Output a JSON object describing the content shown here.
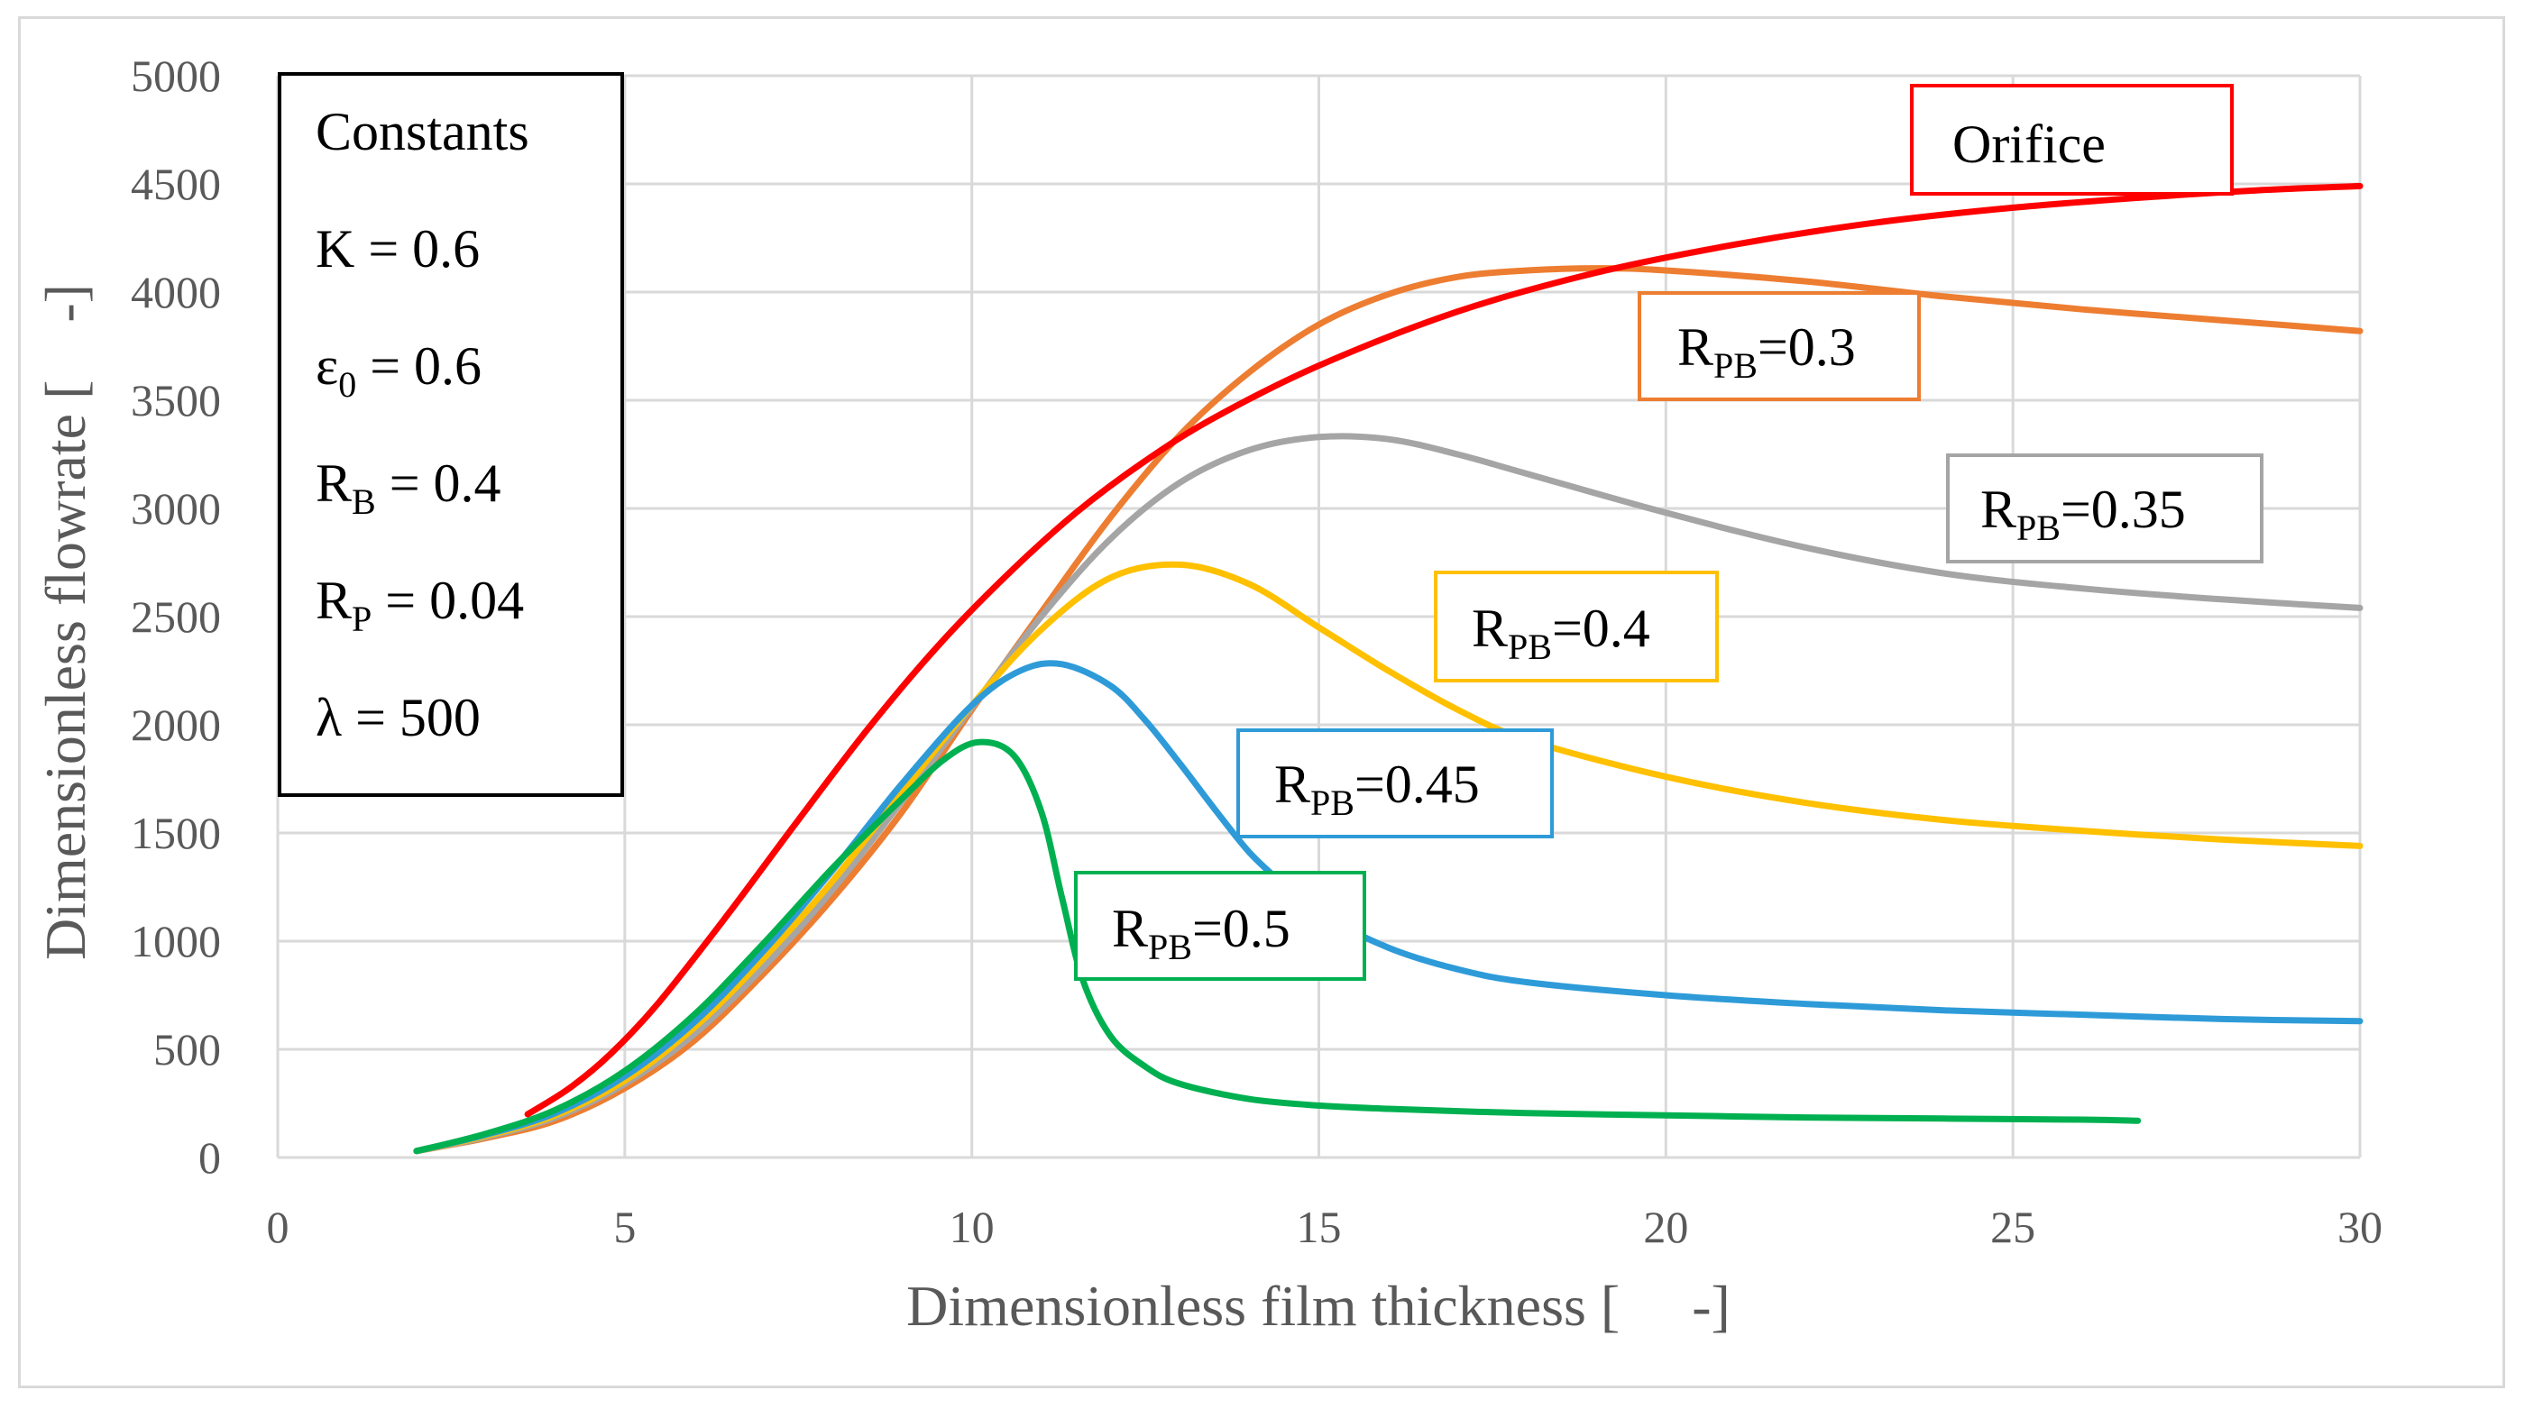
{
  "chart_data": {
    "type": "line",
    "xlabel": "Dimensionless film thickness [     -]",
    "ylabel": "Dimensionless flowrate [    -]",
    "xlim": [
      0,
      30
    ],
    "ylim": [
      0,
      5000
    ],
    "x_ticks": [
      0,
      5,
      10,
      15,
      20,
      25,
      30
    ],
    "y_ticks": [
      0,
      500,
      1000,
      1500,
      2000,
      2500,
      3000,
      3500,
      4000,
      4500,
      5000
    ],
    "grid": true,
    "constants_box": {
      "title": "Constants",
      "lines": [
        {
          "main": "K = 0.6"
        },
        {
          "main": "ε",
          "sub": "0",
          "rest": " = 0.6"
        },
        {
          "main": "R",
          "sub": "B",
          "rest": " = 0.4"
        },
        {
          "main": "R",
          "sub": "P",
          "rest": " = 0.04"
        },
        {
          "main": "λ = 500"
        }
      ]
    },
    "series": [
      {
        "name": "Orifice",
        "label_main": "Orifice",
        "color": "#ff0000",
        "x": [
          3.6,
          4.2,
          4.8,
          5.5,
          6.5,
          7.5,
          8.5,
          9.5,
          10.5,
          11.5,
          12.5,
          13.5,
          15,
          17,
          19,
          21,
          23,
          25,
          27,
          28.5,
          30
        ],
        "y": [
          200,
          320,
          480,
          720,
          1130,
          1560,
          1980,
          2360,
          2690,
          2980,
          3220,
          3420,
          3660,
          3910,
          4090,
          4220,
          4320,
          4390,
          4440,
          4470,
          4490
        ]
      },
      {
        "name": "RPB=0.3",
        "label_main": "R",
        "label_sub": "PB",
        "label_rest": "=0.3",
        "color": "#ed7d31",
        "x": [
          2,
          3,
          4,
          5,
          6,
          7,
          8,
          9,
          10,
          11,
          12,
          13,
          14,
          15,
          16,
          17,
          18,
          19,
          20,
          22,
          24,
          26,
          28,
          30
        ],
        "y": [
          30,
          90,
          170,
          320,
          540,
          850,
          1200,
          1600,
          2070,
          2520,
          2960,
          3340,
          3630,
          3850,
          3990,
          4070,
          4100,
          4110,
          4100,
          4050,
          3980,
          3920,
          3870,
          3820
        ]
      },
      {
        "name": "RPB=0.35",
        "label_main": "R",
        "label_sub": "PB",
        "label_rest": "=0.35",
        "color": "#a5a5a5",
        "x": [
          2,
          3,
          4,
          5,
          6,
          7,
          8,
          9,
          10,
          11,
          12,
          13,
          14,
          15,
          16,
          17,
          18,
          20,
          22,
          24,
          26,
          28,
          30
        ],
        "y": [
          30,
          95,
          185,
          340,
          570,
          880,
          1240,
          1650,
          2080,
          2500,
          2860,
          3120,
          3270,
          3330,
          3320,
          3250,
          3160,
          2980,
          2820,
          2700,
          2630,
          2580,
          2540
        ]
      },
      {
        "name": "RPB=0.4",
        "label_main": "R",
        "label_sub": "PB",
        "label_rest": "=0.4",
        "color": "#ffc000",
        "x": [
          2,
          3,
          4,
          5,
          6,
          7,
          8,
          9,
          10,
          11,
          12,
          13,
          14,
          15,
          16,
          17,
          18,
          20,
          22,
          24,
          26,
          28,
          30
        ],
        "y": [
          30,
          100,
          195,
          355,
          600,
          920,
          1280,
          1690,
          2090,
          2440,
          2680,
          2740,
          2650,
          2450,
          2250,
          2070,
          1930,
          1760,
          1640,
          1560,
          1510,
          1470,
          1440
        ]
      },
      {
        "name": "RPB=0.45",
        "label_main": "R",
        "label_sub": "PB",
        "label_rest": "=0.45",
        "color": "#2e9bd8",
        "x": [
          2,
          3,
          4,
          5,
          6,
          7,
          8,
          9,
          10,
          10.7,
          11.3,
          12,
          12.5,
          13,
          13.5,
          14,
          14.5,
          15,
          16,
          17,
          18,
          20,
          22,
          24,
          26,
          28,
          30
        ],
        "y": [
          30,
          105,
          205,
          375,
          625,
          955,
          1330,
          1730,
          2090,
          2250,
          2280,
          2180,
          2020,
          1820,
          1610,
          1410,
          1260,
          1130,
          970,
          870,
          810,
          750,
          710,
          680,
          660,
          640,
          630
        ]
      },
      {
        "name": "RPB=0.5",
        "label_main": "R",
        "label_sub": "PB",
        "label_rest": "=0.5",
        "color": "#00b050",
        "x": [
          2,
          3,
          4,
          5,
          6,
          7,
          8,
          9,
          9.6,
          10.1,
          10.6,
          11,
          11.3,
          11.6,
          12,
          12.5,
          13,
          14,
          15,
          16,
          18,
          20,
          22,
          24,
          26,
          26.8
        ],
        "y": [
          30,
          110,
          220,
          400,
          660,
          990,
          1340,
          1660,
          1840,
          1920,
          1860,
          1600,
          1200,
          820,
          560,
          420,
          340,
          270,
          240,
          225,
          205,
          195,
          185,
          180,
          175,
          170
        ]
      }
    ],
    "labels": [
      {
        "series": "Orifice"
      },
      {
        "series": "RPB=0.3"
      },
      {
        "series": "RPB=0.35"
      },
      {
        "series": "RPB=0.4"
      },
      {
        "series": "RPB=0.45"
      },
      {
        "series": "RPB=0.5"
      }
    ]
  }
}
